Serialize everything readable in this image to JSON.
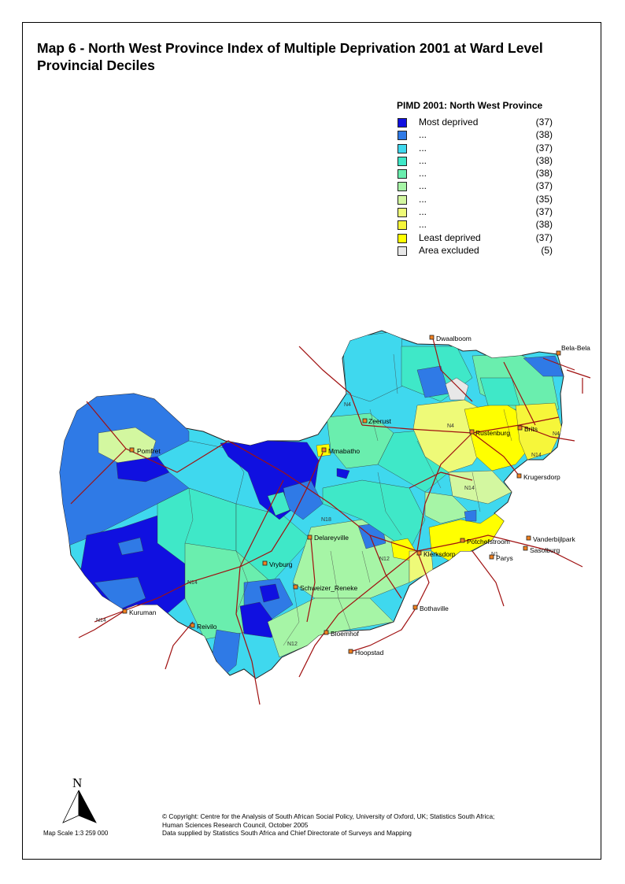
{
  "title_line1": "Map 6 - North West Province Index of Multiple Deprivation 2001 at Ward Level",
  "title_line2": "Provincial Deciles",
  "legend": {
    "title": "PIMD 2001: North West Province",
    "items": [
      {
        "label": "Most deprived",
        "count": "(37)",
        "color": "#1010e0"
      },
      {
        "label": "...",
        "count": "(38)",
        "color": "#2f7ae6"
      },
      {
        "label": "...",
        "count": "(37)",
        "color": "#3fd8ee"
      },
      {
        "label": "...",
        "count": "(38)",
        "color": "#3fe8c8"
      },
      {
        "label": "...",
        "count": "(38)",
        "color": "#6aeeae"
      },
      {
        "label": "...",
        "count": "(37)",
        "color": "#a6f5a6"
      },
      {
        "label": "...",
        "count": "(35)",
        "color": "#d3f7a0"
      },
      {
        "label": "...",
        "count": "(37)",
        "color": "#eefa78"
      },
      {
        "label": "...",
        "count": "(38)",
        "color": "#f6f63a"
      },
      {
        "label": "Least deprived",
        "count": "(37)",
        "color": "#ffff00"
      },
      {
        "label": "Area excluded",
        "count": "(5)",
        "color": "#e8e8e8"
      }
    ]
  },
  "places": {
    "dwaalboom": "Dwaalboom",
    "bela_bela": "Bela-Bela",
    "zeerust": "Zeerust",
    "rustenburg": "Rustenburg",
    "brits": "Brits",
    "pomfret": "Pomfret",
    "mmabatho": "Mmabatho",
    "krugersdorp": "Krugersdorp",
    "delareyville": "Delareyville",
    "vanderbijlpark": "Vanderbijlpark",
    "potchefstroom": "Potchefstroom",
    "klerksdorp": "Klerksdorp",
    "sasolburg": "Sasolburg",
    "parys": "Parys",
    "vryburg": "Vryburg",
    "schweizer_reneke": "Schweizer_Reneke",
    "bothaville": "Bothaville",
    "kuruman": "Kuruman",
    "reivilo": "Reivilo",
    "bloemhof": "Bloemhof",
    "hoopstad": "Hoopstad"
  },
  "roads": {
    "n4_a": "N4",
    "n4_b": "N4",
    "n4_c": "N4",
    "n14_a": "N14",
    "n14_b": "N14",
    "n14_c": "N14",
    "n14_d": "N14",
    "n18": "N18",
    "n12_a": "N12",
    "n12_b": "N12",
    "n1": "N1"
  },
  "north_label": "N",
  "scale_text": "Map Scale 1:3 259 000",
  "credits": {
    "line1": "© Copyright: Centre for the Analysis of South African Social Policy, University of Oxford, UK; Statistics South Africa;",
    "line2": "Human Sciences Research Council,  October 2005",
    "line3": "Data supplied by Statistics South Africa and Chief Directorate of Surveys and Mapping"
  }
}
